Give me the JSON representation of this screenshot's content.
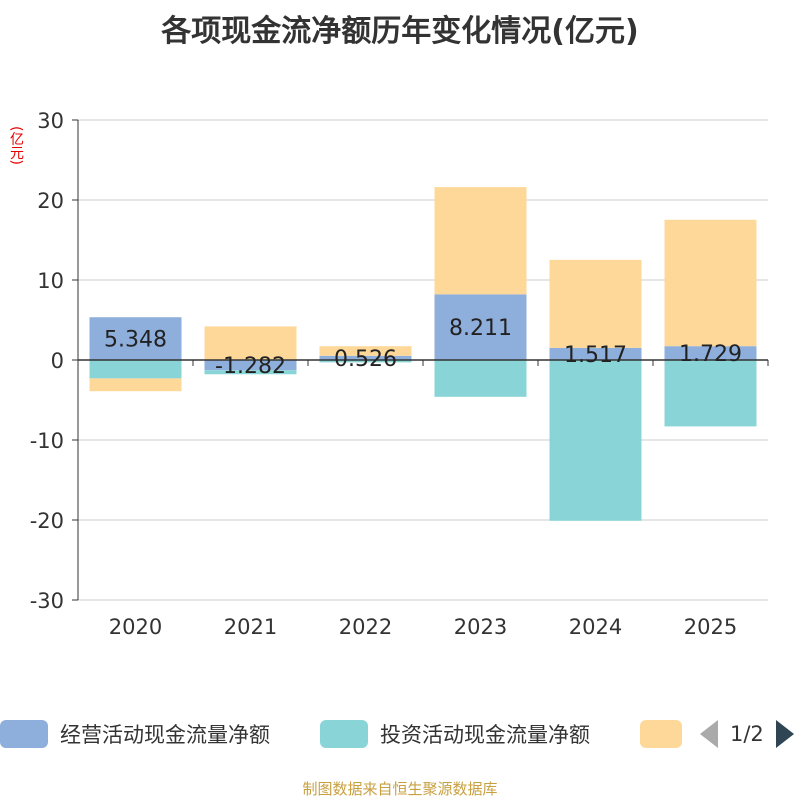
{
  "chart_data": {
    "type": "bar",
    "stacked": true,
    "title": "各项现金流净额历年变化情况(亿元)",
    "ylabel": "(亿元)",
    "ylim": [
      -30,
      30
    ],
    "yticks": [
      -30,
      -20,
      -10,
      0,
      10,
      20,
      30
    ],
    "categories": [
      "2020",
      "2021",
      "2022",
      "2023",
      "2024",
      "2025"
    ],
    "series": [
      {
        "name": "经营活动现金流量净额",
        "color": "#8eaedb",
        "values": [
          5.348,
          -1.282,
          0.526,
          8.211,
          1.517,
          1.729
        ],
        "labels": [
          "5.348",
          "-1.282",
          "0.526",
          "8.211",
          "1.517",
          "1.729"
        ]
      },
      {
        "name": "投资活动现金流量净额",
        "color": "#88d4d6",
        "values": [
          -2.3,
          -0.5,
          -0.3,
          -4.6,
          -20.1,
          -8.3
        ]
      },
      {
        "name": "",
        "color": "#fdd899",
        "values": [
          -1.6,
          4.2,
          1.2,
          13.4,
          11.0,
          15.8
        ]
      }
    ],
    "grid": true,
    "legend": "bottom"
  },
  "legend": {
    "items": [
      {
        "label": "经营活动现金流量净额",
        "color": "#8eaedb"
      },
      {
        "label": "投资活动现金流量净额",
        "color": "#88d4d6"
      },
      {
        "label": "",
        "color": "#fdd899"
      }
    ],
    "page": "1/2"
  },
  "source": "制图数据来自恒生聚源数据库"
}
